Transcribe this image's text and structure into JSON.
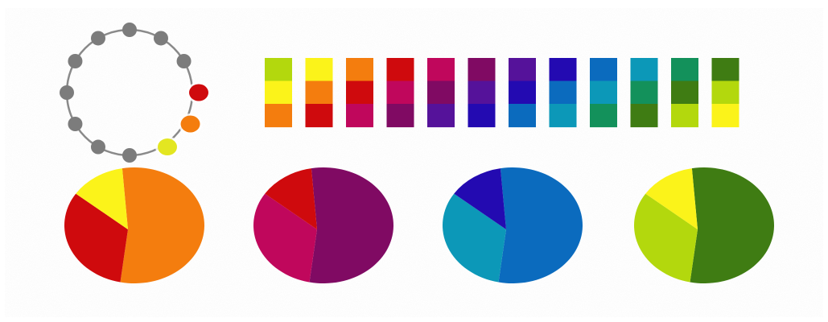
{
  "palette": {
    "yellow": "#FBF31A",
    "yellow_orange": "#F4B400",
    "orange": "#F47D0E",
    "red_orange": "#E84A10",
    "red": "#CF0A0D",
    "crimson": "#C0075C",
    "magenta": "#B10C68",
    "plum": "#800A63",
    "purple": "#700C6E",
    "violet": "#55129A",
    "indigo": "#3A0EA4",
    "blue_violet": "#230AB1",
    "blue": "#0B6BBE",
    "cerulean": "#0D8AC0",
    "teal_blue": "#0C98B8",
    "green": "#13915B",
    "green_dark": "#107D42",
    "olive_green": "#3F7C13",
    "lime": "#B3D80D",
    "yellow_green": "#BCD40C"
  },
  "wheel": {
    "total_positions": 12,
    "highlighted": [
      {
        "position": "red",
        "color": "#CF0A0D"
      },
      {
        "position": "orange",
        "color": "#F47D0E"
      },
      {
        "position": "yellow",
        "color": "#E3E621"
      }
    ],
    "inactive_color": "#7C7C7C",
    "ring_color": "#8A8A8A"
  },
  "strips": [
    {
      "colors": [
        "#B3D80D",
        "#FBF31A",
        "#F47D0E"
      ]
    },
    {
      "colors": [
        "#FBF31A",
        "#F47D0E",
        "#CF0A0D"
      ]
    },
    {
      "colors": [
        "#F47D0E",
        "#CF0A0D",
        "#C0075C"
      ]
    },
    {
      "colors": [
        "#CF0A0D",
        "#C0075C",
        "#800A63"
      ]
    },
    {
      "colors": [
        "#C0075C",
        "#800A63",
        "#55129A"
      ]
    },
    {
      "colors": [
        "#800A63",
        "#55129A",
        "#230AB1"
      ]
    },
    {
      "colors": [
        "#55129A",
        "#230AB1",
        "#0B6BBE"
      ]
    },
    {
      "colors": [
        "#230AB1",
        "#0B6BBE",
        "#0C98B8"
      ]
    },
    {
      "colors": [
        "#0B6BBE",
        "#0C98B8",
        "#13915B"
      ]
    },
    {
      "colors": [
        "#0C98B8",
        "#13915B",
        "#3F7C13"
      ]
    },
    {
      "colors": [
        "#13915B",
        "#3F7C13",
        "#B3D80D"
      ]
    },
    {
      "colors": [
        "#3F7C13",
        "#B3D80D",
        "#FBF31A"
      ]
    }
  ],
  "pies": [
    {
      "slices": [
        {
          "color": "#F47D0E",
          "share": 0.56
        },
        {
          "color": "#CF0A0D",
          "share": 0.31
        },
        {
          "color": "#FBF31A",
          "share": 0.13
        }
      ]
    },
    {
      "slices": [
        {
          "color": "#800A63",
          "share": 0.56
        },
        {
          "color": "#C0075C",
          "share": 0.31
        },
        {
          "color": "#CF0A0D",
          "share": 0.13
        }
      ]
    },
    {
      "slices": [
        {
          "color": "#0B6BBE",
          "share": 0.56
        },
        {
          "color": "#0C98B8",
          "share": 0.31
        },
        {
          "color": "#230AB1",
          "share": 0.13
        }
      ]
    },
    {
      "slices": [
        {
          "color": "#3F7C13",
          "share": 0.56
        },
        {
          "color": "#B3D80D",
          "share": 0.31
        },
        {
          "color": "#FBF31A",
          "share": 0.13
        }
      ]
    }
  ],
  "background": {
    "paper": "#C9C7C3",
    "border": "#FFFFFF"
  }
}
